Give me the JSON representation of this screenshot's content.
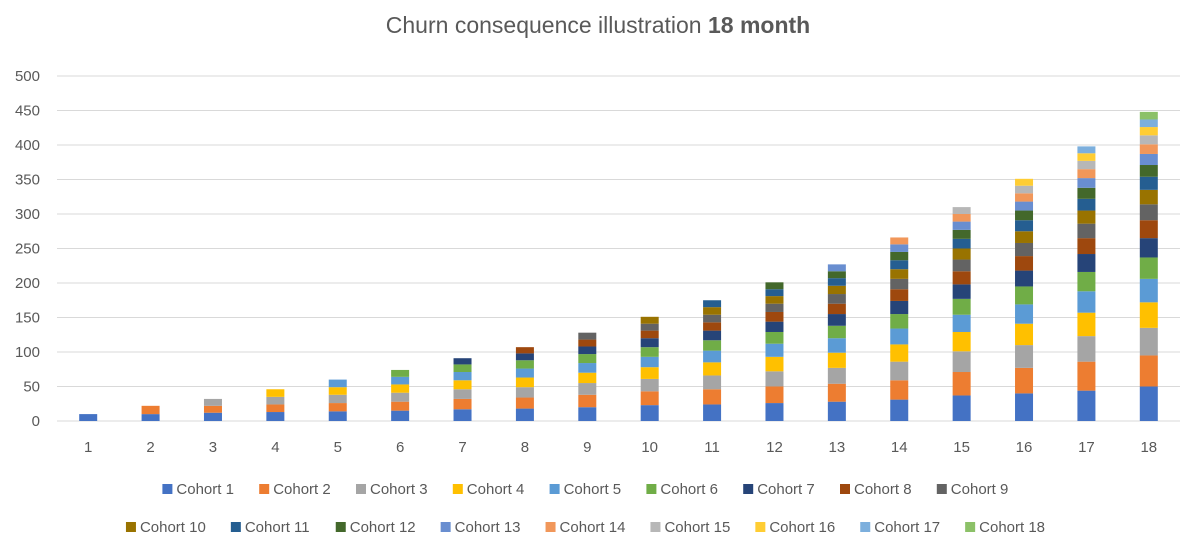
{
  "chart_data": {
    "type": "bar",
    "stacked": true,
    "title": "Churn consequence illustration",
    "title_bold": "18 month",
    "xlabel": "",
    "ylabel": "",
    "ylim": [
      0,
      500
    ],
    "yticks": [
      0,
      50,
      100,
      150,
      200,
      250,
      300,
      350,
      400,
      450,
      500
    ],
    "categories": [
      "1",
      "2",
      "3",
      "4",
      "5",
      "6",
      "7",
      "8",
      "9",
      "10",
      "11",
      "12",
      "13",
      "14",
      "15",
      "16",
      "17",
      "18"
    ],
    "grid": true,
    "legend_position": "bottom",
    "series": [
      {
        "name": "Cohort 1",
        "color": "#4472C4",
        "values": [
          10,
          10,
          12,
          13,
          14,
          15,
          17,
          18,
          20,
          23,
          24,
          26,
          28,
          31,
          37,
          40,
          44,
          50
        ]
      },
      {
        "name": "Cohort 2",
        "color": "#ED7D31",
        "values": [
          0,
          12,
          10,
          11,
          12,
          13,
          15,
          16,
          18,
          20,
          22,
          24,
          26,
          28,
          34,
          37,
          42,
          45
        ]
      },
      {
        "name": "Cohort 3",
        "color": "#A5A5A5",
        "values": [
          0,
          0,
          10,
          11,
          12,
          13,
          14,
          15,
          17,
          18,
          20,
          22,
          23,
          27,
          30,
          33,
          37,
          40
        ]
      },
      {
        "name": "Cohort 4",
        "color": "#FFC000",
        "values": [
          0,
          0,
          0,
          11,
          11,
          12,
          13,
          14,
          15,
          17,
          19,
          21,
          22,
          25,
          28,
          31,
          34,
          37
        ]
      },
      {
        "name": "Cohort 5",
        "color": "#5B9BD5",
        "values": [
          0,
          0,
          0,
          0,
          11,
          11,
          12,
          13,
          14,
          15,
          17,
          19,
          21,
          23,
          25,
          28,
          31,
          34
        ]
      },
      {
        "name": "Cohort 6",
        "color": "#70AD47",
        "values": [
          0,
          0,
          0,
          0,
          0,
          10,
          11,
          12,
          13,
          14,
          15,
          17,
          18,
          21,
          23,
          26,
          28,
          31
        ]
      },
      {
        "name": "Cohort 7",
        "color": "#264478",
        "values": [
          0,
          0,
          0,
          0,
          0,
          0,
          9,
          10,
          11,
          13,
          14,
          15,
          17,
          19,
          21,
          23,
          26,
          28
        ]
      },
      {
        "name": "Cohort 8",
        "color": "#9E480E",
        "values": [
          0,
          0,
          0,
          0,
          0,
          0,
          0,
          9,
          10,
          11,
          12,
          14,
          15,
          17,
          19,
          21,
          23,
          26
        ]
      },
      {
        "name": "Cohort 9",
        "color": "#636363",
        "values": [
          0,
          0,
          0,
          0,
          0,
          0,
          0,
          0,
          10,
          10,
          11,
          12,
          14,
          15,
          17,
          19,
          21,
          23
        ]
      },
      {
        "name": "Cohort 10",
        "color": "#997300",
        "values": [
          0,
          0,
          0,
          0,
          0,
          0,
          0,
          0,
          0,
          10,
          11,
          11,
          12,
          14,
          16,
          17,
          19,
          21
        ]
      },
      {
        "name": "Cohort 11",
        "color": "#255E91",
        "values": [
          0,
          0,
          0,
          0,
          0,
          0,
          0,
          0,
          0,
          0,
          10,
          10,
          11,
          13,
          14,
          16,
          17,
          19
        ]
      },
      {
        "name": "Cohort 12",
        "color": "#43682B",
        "values": [
          0,
          0,
          0,
          0,
          0,
          0,
          0,
          0,
          0,
          0,
          0,
          10,
          10,
          12,
          13,
          14,
          16,
          17
        ]
      },
      {
        "name": "Cohort 13",
        "color": "#698ED0",
        "values": [
          0,
          0,
          0,
          0,
          0,
          0,
          0,
          0,
          0,
          0,
          0,
          0,
          10,
          11,
          12,
          13,
          14,
          16
        ]
      },
      {
        "name": "Cohort 14",
        "color": "#F1975A",
        "values": [
          0,
          0,
          0,
          0,
          0,
          0,
          0,
          0,
          0,
          0,
          0,
          0,
          0,
          10,
          11,
          12,
          13,
          14
        ]
      },
      {
        "name": "Cohort 15",
        "color": "#B7B7B7",
        "values": [
          0,
          0,
          0,
          0,
          0,
          0,
          0,
          0,
          0,
          0,
          0,
          0,
          0,
          0,
          10,
          11,
          12,
          13
        ]
      },
      {
        "name": "Cohort 16",
        "color": "#FFCD33",
        "values": [
          0,
          0,
          0,
          0,
          0,
          0,
          0,
          0,
          0,
          0,
          0,
          0,
          0,
          0,
          0,
          10,
          11,
          12
        ]
      },
      {
        "name": "Cohort 17",
        "color": "#7CAFDD",
        "values": [
          0,
          0,
          0,
          0,
          0,
          0,
          0,
          0,
          0,
          0,
          0,
          0,
          0,
          0,
          0,
          0,
          10,
          11
        ]
      },
      {
        "name": "Cohort 18",
        "color": "#8CC168",
        "values": [
          0,
          0,
          0,
          0,
          0,
          0,
          0,
          0,
          0,
          0,
          0,
          0,
          0,
          0,
          0,
          0,
          0,
          11
        ]
      }
    ]
  }
}
